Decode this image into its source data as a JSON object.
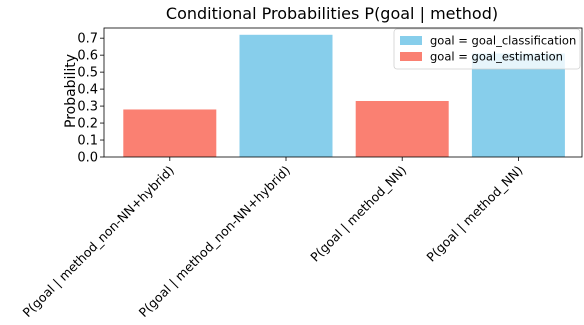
{
  "chart_data": {
    "type": "bar",
    "title": "Conditional Probabilities P(goal | method)",
    "xlabel": "",
    "ylabel": "Probability",
    "ylim": [
      0,
      0.76
    ],
    "yticks": [
      "0.0",
      "0.1",
      "0.2",
      "0.3",
      "0.4",
      "0.5",
      "0.6",
      "0.7"
    ],
    "categories": [
      "P(goal | method_non-NN+hybrid)",
      "P(goal | method_non-NN+hybrid)",
      "P(goal | method_NN)",
      "P(goal | method_NN)"
    ],
    "values": [
      0.28,
      0.72,
      0.33,
      0.61
    ],
    "bar_series": [
      "goal = goal_estimation",
      "goal = goal_classification",
      "goal = goal_estimation",
      "goal = goal_classification"
    ],
    "legend": {
      "placement": "top-right",
      "entries": [
        {
          "label": "goal = goal_classification",
          "color": "#87CEEB"
        },
        {
          "label": "goal = goal_estimation",
          "color": "#FA8072"
        }
      ]
    },
    "grid": false
  }
}
